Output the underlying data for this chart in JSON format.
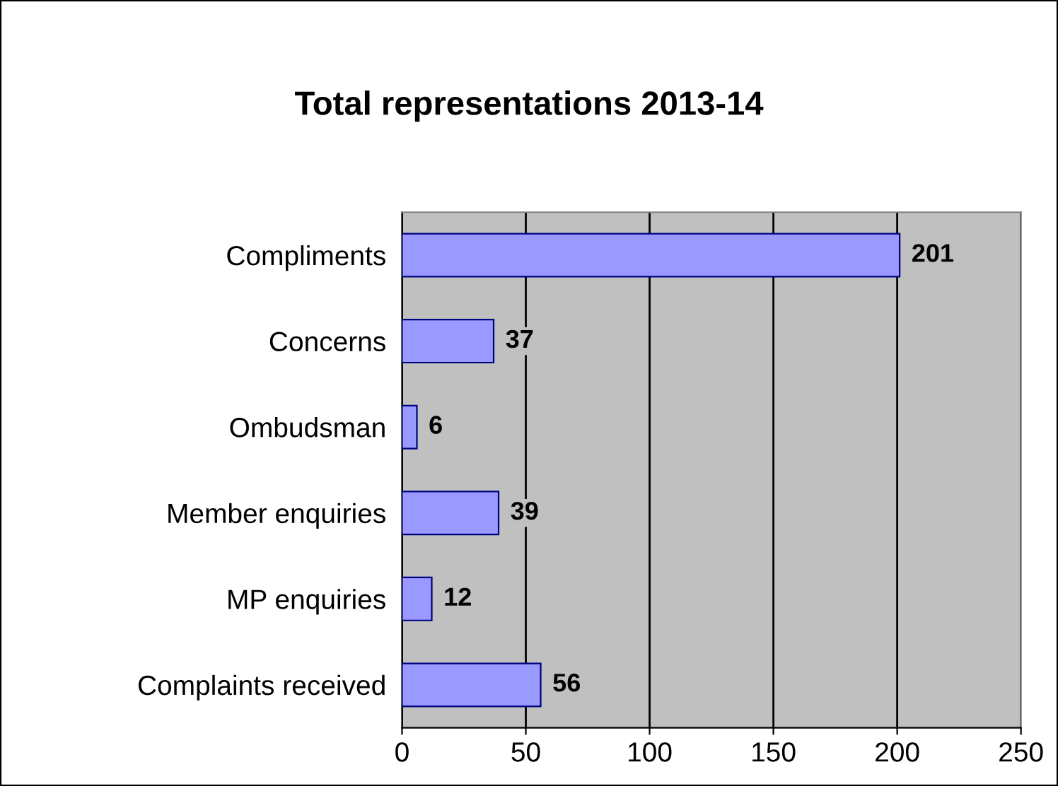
{
  "chart_data": {
    "type": "bar",
    "orientation": "horizontal",
    "title": "Total representations 2013-14",
    "categories": [
      "Compliments",
      "Concerns",
      "Ombudsman",
      "Member enquiries",
      "MP enquiries",
      "Complaints received"
    ],
    "values": [
      201,
      37,
      6,
      39,
      12,
      56
    ],
    "color": "#9999ff",
    "xlim": [
      0,
      250
    ],
    "xticks": [
      0,
      50,
      100,
      150,
      200,
      250
    ],
    "grid": "x",
    "data_labels": true
  }
}
